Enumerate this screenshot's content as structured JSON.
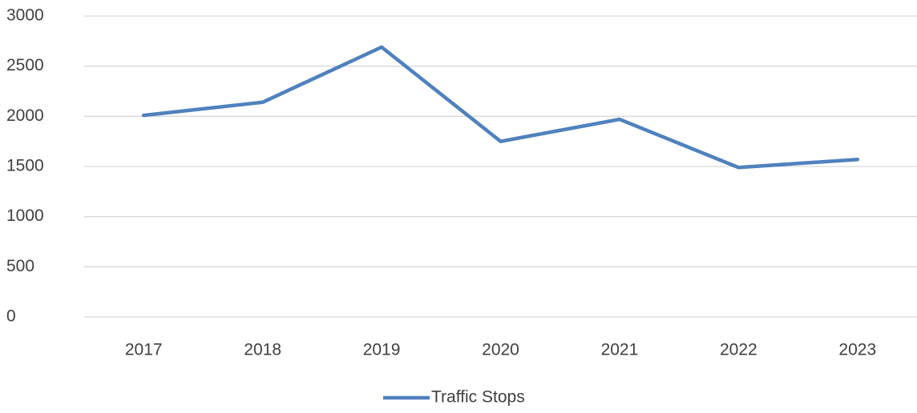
{
  "chart_data": {
    "type": "line",
    "categories": [
      "2017",
      "2018",
      "2019",
      "2020",
      "2021",
      "2022",
      "2023"
    ],
    "series": [
      {
        "name": "Traffic Stops",
        "color": "#4f81bd",
        "values": [
          2010,
          2140,
          2690,
          1750,
          1970,
          1490,
          1570
        ]
      }
    ],
    "ylim": [
      0,
      3000
    ],
    "yticks": [
      0,
      500,
      1000,
      1500,
      2000,
      2500,
      3000
    ],
    "grid": true,
    "legend": "bottom"
  }
}
